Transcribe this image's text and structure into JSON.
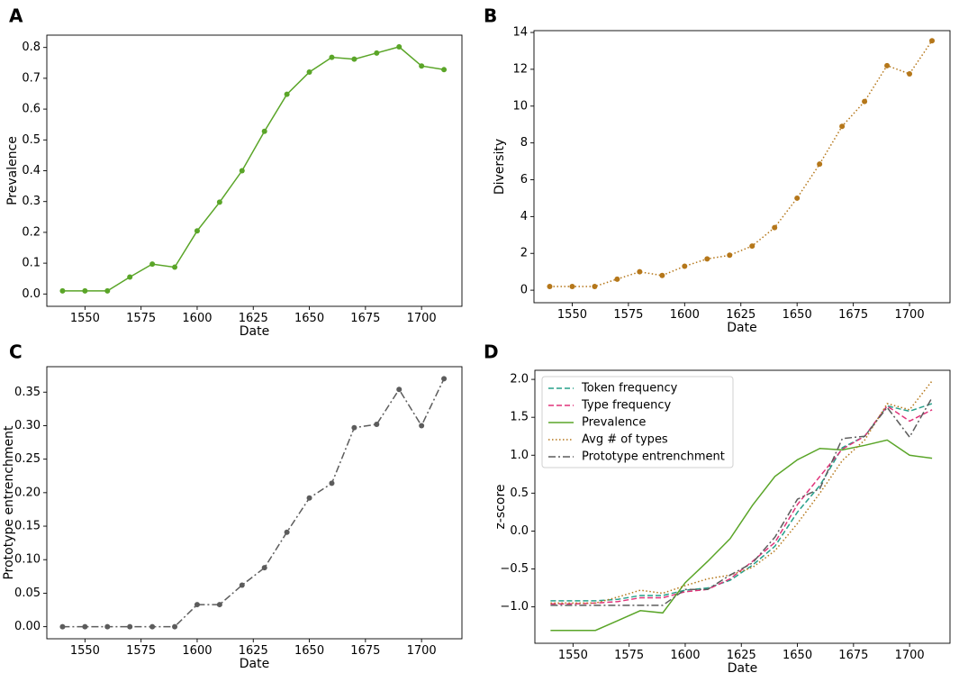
{
  "chart_data": [
    {
      "panel": "A",
      "type": "line",
      "xlabel": "Date",
      "ylabel": "Prevalence",
      "xlim": [
        1533,
        1718
      ],
      "ylim": [
        -0.04,
        0.84
      ],
      "xticks": [
        1550,
        1575,
        1600,
        1625,
        1650,
        1675,
        1700
      ],
      "yticks": [
        0.0,
        0.1,
        0.2,
        0.3,
        0.4,
        0.5,
        0.6,
        0.7,
        0.8
      ],
      "ytick_labels": [
        "0.0",
        "0.1",
        "0.2",
        "0.3",
        "0.4",
        "0.5",
        "0.6",
        "0.7",
        "0.8"
      ],
      "series": [
        {
          "name": "Prevalence",
          "color": "#5aa528",
          "style": "solid",
          "marker": true,
          "x": [
            1540,
            1550,
            1560,
            1570,
            1580,
            1590,
            1600,
            1610,
            1620,
            1630,
            1640,
            1650,
            1660,
            1670,
            1680,
            1690,
            1700,
            1710
          ],
          "y": [
            0.01,
            0.01,
            0.01,
            0.055,
            0.097,
            0.087,
            0.205,
            0.298,
            0.4,
            0.528,
            0.648,
            0.72,
            0.768,
            0.762,
            0.782,
            0.802,
            0.74,
            0.728
          ]
        }
      ]
    },
    {
      "panel": "B",
      "type": "line",
      "xlabel": "Date",
      "ylabel": "Diversity",
      "xlim": [
        1533,
        1718
      ],
      "ylim": [
        -0.68,
        14.1
      ],
      "xticks": [
        1550,
        1575,
        1600,
        1625,
        1650,
        1675,
        1700
      ],
      "yticks": [
        0,
        2,
        4,
        6,
        8,
        10,
        12,
        14
      ],
      "ytick_labels": [
        "0",
        "2",
        "4",
        "6",
        "8",
        "10",
        "12",
        "14"
      ],
      "series": [
        {
          "name": "Diversity",
          "color": "#b5771a",
          "style": "dotted",
          "marker": true,
          "x": [
            1540,
            1550,
            1560,
            1570,
            1580,
            1590,
            1600,
            1610,
            1620,
            1630,
            1640,
            1650,
            1660,
            1670,
            1680,
            1690,
            1700,
            1710
          ],
          "y": [
            0.2,
            0.2,
            0.2,
            0.6,
            1.0,
            0.8,
            1.3,
            1.7,
            1.9,
            2.4,
            3.4,
            5.0,
            6.85,
            8.9,
            10.25,
            12.2,
            11.75,
            13.55
          ]
        }
      ]
    },
    {
      "panel": "C",
      "type": "line",
      "xlabel": "Date",
      "ylabel": "Prototype entrenchment",
      "xlim": [
        1533,
        1718
      ],
      "ylim": [
        -0.018,
        0.388
      ],
      "xticks": [
        1550,
        1575,
        1600,
        1625,
        1650,
        1675,
        1700
      ],
      "yticks": [
        0.0,
        0.05,
        0.1,
        0.15,
        0.2,
        0.25,
        0.3,
        0.35
      ],
      "ytick_labels": [
        "0.00",
        "0.05",
        "0.10",
        "0.15",
        "0.20",
        "0.25",
        "0.30",
        "0.35"
      ],
      "series": [
        {
          "name": "Prototype entrenchment",
          "color": "#5c5c5c",
          "style": "dashdot",
          "marker": true,
          "x": [
            1540,
            1550,
            1560,
            1570,
            1580,
            1590,
            1600,
            1610,
            1620,
            1630,
            1640,
            1650,
            1660,
            1670,
            1680,
            1690,
            1700,
            1710
          ],
          "y": [
            0.0,
            0.0,
            0.0,
            0.0,
            0.0,
            0.0,
            0.033,
            0.033,
            0.062,
            0.088,
            0.141,
            0.192,
            0.214,
            0.297,
            0.302,
            0.354,
            0.3,
            0.37
          ]
        }
      ]
    },
    {
      "panel": "D",
      "type": "line",
      "xlabel": "Date",
      "ylabel": "z-score",
      "xlim": [
        1533,
        1718
      ],
      "ylim": [
        -1.48,
        2.12
      ],
      "xticks": [
        1550,
        1575,
        1600,
        1625,
        1650,
        1675,
        1700
      ],
      "yticks": [
        -1.0,
        -0.5,
        0.0,
        0.5,
        1.0,
        1.5,
        2.0
      ],
      "ytick_labels": [
        "−1.0",
        "−0.5",
        "0.0",
        "0.5",
        "1.0",
        "1.5",
        "2.0"
      ],
      "legend_position": "top-left",
      "series": [
        {
          "name": "Token frequency",
          "color": "#27a08a",
          "style": "dashed",
          "marker": false,
          "x": [
            1540,
            1550,
            1560,
            1570,
            1580,
            1590,
            1600,
            1610,
            1620,
            1630,
            1640,
            1650,
            1660,
            1670,
            1680,
            1690,
            1700,
            1710
          ],
          "y": [
            -0.92,
            -0.92,
            -0.92,
            -0.9,
            -0.85,
            -0.85,
            -0.78,
            -0.75,
            -0.65,
            -0.45,
            -0.2,
            0.25,
            0.6,
            1.1,
            1.25,
            1.65,
            1.58,
            1.68
          ]
        },
        {
          "name": "Type frequency",
          "color": "#e0347a",
          "style": "dashed",
          "marker": false,
          "x": [
            1540,
            1550,
            1560,
            1570,
            1580,
            1590,
            1600,
            1610,
            1620,
            1630,
            1640,
            1650,
            1660,
            1670,
            1680,
            1690,
            1700,
            1710
          ],
          "y": [
            -0.96,
            -0.96,
            -0.95,
            -0.93,
            -0.88,
            -0.88,
            -0.8,
            -0.77,
            -0.63,
            -0.4,
            -0.15,
            0.35,
            0.72,
            1.08,
            1.25,
            1.65,
            1.45,
            1.6
          ]
        },
        {
          "name": "Prevalence",
          "color": "#5aa528",
          "style": "solid",
          "marker": false,
          "x": [
            1540,
            1550,
            1560,
            1570,
            1580,
            1590,
            1600,
            1610,
            1620,
            1630,
            1640,
            1650,
            1660,
            1670,
            1680,
            1690,
            1700,
            1710
          ],
          "y": [
            -1.31,
            -1.31,
            -1.31,
            -1.18,
            -1.05,
            -1.08,
            -0.68,
            -0.4,
            -0.1,
            0.34,
            0.72,
            0.94,
            1.09,
            1.07,
            1.13,
            1.2,
            1.0,
            0.96
          ]
        },
        {
          "name": "Avg # of types",
          "color": "#b5771a",
          "style": "dotted",
          "marker": false,
          "x": [
            1540,
            1550,
            1560,
            1570,
            1580,
            1590,
            1600,
            1610,
            1620,
            1630,
            1640,
            1650,
            1660,
            1670,
            1680,
            1690,
            1700,
            1710
          ],
          "y": [
            -0.95,
            -0.95,
            -0.95,
            -0.87,
            -0.78,
            -0.82,
            -0.72,
            -0.63,
            -0.58,
            -0.48,
            -0.26,
            0.1,
            0.5,
            0.93,
            1.2,
            1.68,
            1.6,
            1.98
          ]
        },
        {
          "name": "Prototype entrenchment",
          "color": "#5c5c5c",
          "style": "dashdot",
          "marker": false,
          "x": [
            1540,
            1550,
            1560,
            1570,
            1580,
            1590,
            1600,
            1610,
            1620,
            1630,
            1640,
            1650,
            1660,
            1670,
            1680,
            1690,
            1700,
            1710
          ],
          "y": [
            -0.98,
            -0.98,
            -0.98,
            -0.98,
            -0.98,
            -0.98,
            -0.77,
            -0.77,
            -0.58,
            -0.42,
            -0.08,
            0.42,
            0.56,
            1.22,
            1.25,
            1.63,
            1.24,
            1.76
          ]
        }
      ]
    }
  ]
}
